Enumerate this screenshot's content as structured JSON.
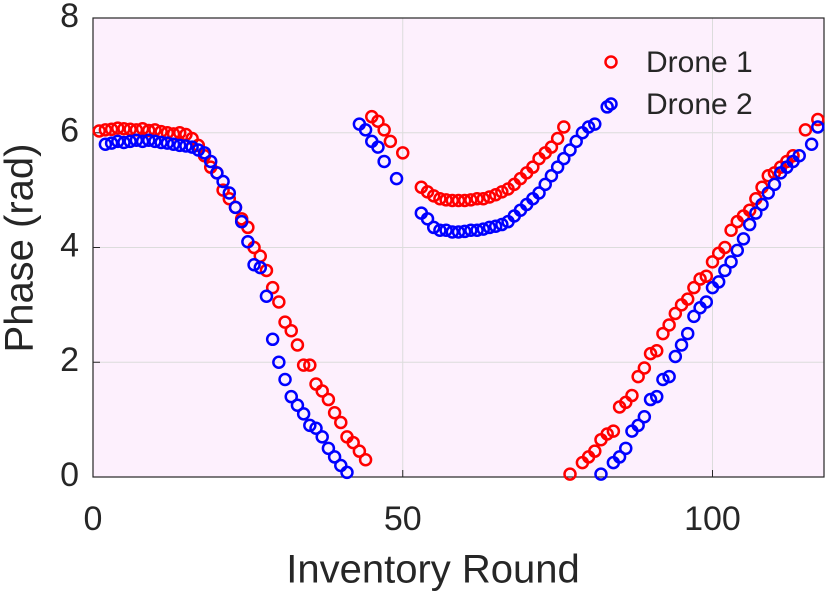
{
  "chart_data": {
    "type": "scatter",
    "x_label": "Inventory Round",
    "y_label": "Phase (rad)",
    "xlim": [
      0,
      118
    ],
    "ylim": [
      0,
      8
    ],
    "xticks": [
      0,
      50,
      100
    ],
    "yticks": [
      0,
      2,
      4,
      6,
      8
    ],
    "grid": true,
    "legend": "northeast",
    "series": [
      {
        "name": "Drone 1",
        "color": "#ff0000",
        "x": [
          1,
          2,
          3,
          4,
          5,
          6,
          7,
          8,
          9,
          10,
          11,
          12,
          13,
          14,
          15,
          16,
          17,
          18,
          19,
          20,
          21,
          22,
          23,
          24,
          25,
          26,
          27,
          28,
          29,
          30,
          31,
          32,
          33,
          34,
          35,
          36,
          37,
          38,
          39,
          40,
          41,
          42,
          43,
          44,
          45,
          46,
          47,
          48,
          50,
          53,
          54,
          55,
          56,
          57,
          58,
          59,
          60,
          61,
          62,
          63,
          64,
          65,
          66,
          67,
          68,
          69,
          70,
          71,
          72,
          73,
          74,
          75,
          76,
          77,
          79,
          80,
          81,
          82,
          83,
          84,
          85,
          86,
          87,
          88,
          89,
          90,
          91,
          92,
          93,
          94,
          95,
          96,
          97,
          98,
          99,
          100,
          101,
          102,
          103,
          104,
          105,
          106,
          107,
          108,
          109,
          110,
          111,
          112,
          113,
          115,
          117
        ],
        "values": [
          6.03,
          6.05,
          6.06,
          6.08,
          6.07,
          6.06,
          6.05,
          6.07,
          6.04,
          6.05,
          6.02,
          6.0,
          5.98,
          6.0,
          5.97,
          5.9,
          5.78,
          5.6,
          5.4,
          5.3,
          5.0,
          4.85,
          4.7,
          4.5,
          4.35,
          4.0,
          3.85,
          3.6,
          3.3,
          3.05,
          2.7,
          2.55,
          2.3,
          1.95,
          1.95,
          1.62,
          1.5,
          1.35,
          1.12,
          0.95,
          0.7,
          0.6,
          0.45,
          0.3,
          6.28,
          6.2,
          6.05,
          5.85,
          5.65,
          5.05,
          4.97,
          4.9,
          4.85,
          4.83,
          4.82,
          4.82,
          4.82,
          4.83,
          4.85,
          4.85,
          4.88,
          4.92,
          4.97,
          5.02,
          5.1,
          5.2,
          5.3,
          5.4,
          5.55,
          5.65,
          5.75,
          5.9,
          6.1,
          0.05,
          0.25,
          0.35,
          0.45,
          0.65,
          0.75,
          0.8,
          1.22,
          1.3,
          1.42,
          1.75,
          1.9,
          2.15,
          2.2,
          2.5,
          2.65,
          2.85,
          3.0,
          3.1,
          3.3,
          3.45,
          3.5,
          3.75,
          3.9,
          4.0,
          4.3,
          4.45,
          4.55,
          4.65,
          4.85,
          5.05,
          5.25,
          5.3,
          5.4,
          5.5,
          5.6,
          6.05,
          6.23
        ]
      },
      {
        "name": "Drone 2",
        "color": "#0000ff",
        "x": [
          2,
          3,
          4,
          5,
          6,
          7,
          8,
          9,
          10,
          11,
          12,
          13,
          14,
          15,
          16,
          17,
          18,
          19,
          20,
          21,
          22,
          23,
          24,
          25,
          26,
          27,
          28,
          29,
          30,
          31,
          32,
          33,
          34,
          35,
          36,
          37,
          38,
          39,
          40,
          41,
          43,
          44,
          45,
          46,
          47,
          49,
          53,
          54,
          55,
          56,
          57,
          58,
          59,
          60,
          61,
          62,
          63,
          64,
          65,
          66,
          67,
          68,
          69,
          70,
          71,
          72,
          73,
          74,
          75,
          76,
          77,
          78,
          79,
          80,
          81,
          83,
          82,
          84,
          85,
          86,
          87,
          88,
          89,
          90,
          91,
          92,
          93,
          94,
          95,
          96,
          97,
          98,
          99,
          100,
          101,
          102,
          103,
          104,
          105,
          106,
          107,
          108,
          109,
          110,
          111,
          112,
          113,
          114,
          116,
          117
        ],
        "values": [
          5.8,
          5.82,
          5.85,
          5.83,
          5.85,
          5.87,
          5.85,
          5.87,
          5.85,
          5.83,
          5.82,
          5.8,
          5.78,
          5.77,
          5.75,
          5.7,
          5.65,
          5.5,
          5.3,
          5.15,
          4.95,
          4.7,
          4.45,
          4.1,
          3.7,
          3.65,
          3.15,
          2.4,
          2.0,
          1.7,
          1.4,
          1.25,
          1.1,
          0.9,
          0.85,
          0.7,
          0.5,
          0.35,
          0.2,
          0.08,
          6.15,
          6.05,
          5.85,
          5.75,
          5.5,
          5.2,
          4.6,
          4.5,
          4.35,
          4.3,
          4.3,
          4.27,
          4.27,
          4.28,
          4.3,
          4.3,
          4.32,
          4.35,
          4.37,
          4.4,
          4.45,
          4.55,
          4.65,
          4.75,
          4.85,
          4.95,
          5.1,
          5.25,
          5.4,
          5.55,
          5.7,
          5.85,
          6.0,
          6.1,
          6.15,
          6.45,
          0.05,
          0.25,
          0.35,
          0.5,
          0.8,
          0.9,
          1.05,
          1.35,
          1.4,
          1.7,
          1.75,
          2.1,
          2.3,
          2.5,
          2.8,
          2.95,
          3.05,
          3.3,
          3.4,
          3.6,
          3.75,
          3.95,
          4.15,
          4.4,
          4.6,
          4.75,
          4.95,
          5.1,
          5.3,
          5.4,
          5.5,
          5.6,
          5.8,
          6.1
        ]
      }
    ]
  }
}
